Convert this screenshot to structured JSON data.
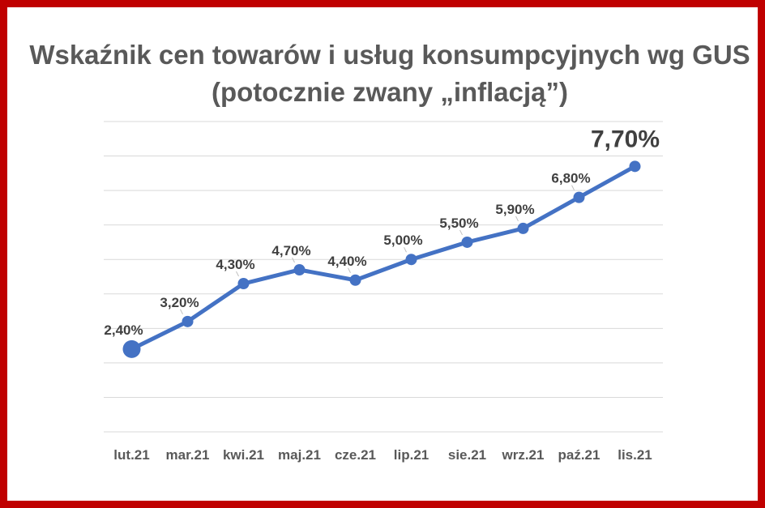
{
  "title": {
    "line1": "Wskaźnik cen towarów i usług konsumpcyjnych wg GUS",
    "line2": "(potocznie zwany „inflacją”)"
  },
  "colors": {
    "frame": "#c00000",
    "line": "#4472c4",
    "title": "#595959",
    "label": "#404040",
    "grid": "#d9d9d9"
  },
  "chart_data": {
    "type": "line",
    "title": "Wskaźnik cen towarów i usług konsumpcyjnych wg GUS (potocznie zwany „inflacją”)",
    "categories": [
      "lut.21",
      "mar.21",
      "kwi.21",
      "maj.21",
      "cze.21",
      "lip.21",
      "sie.21",
      "wrz.21",
      "paź.21",
      "lis.21"
    ],
    "values": [
      2.4,
      3.2,
      4.3,
      4.7,
      4.4,
      5.0,
      5.5,
      5.9,
      6.8,
      7.7
    ],
    "labels": [
      "2,40%",
      "3,20%",
      "4,30%",
      "4,70%",
      "4,40%",
      "5,00%",
      "5,50%",
      "5,90%",
      "6,80%",
      "7,70%"
    ],
    "ylim": [
      0,
      9
    ],
    "grid": true,
    "y_axis_labels_shown": false,
    "legend": false
  }
}
